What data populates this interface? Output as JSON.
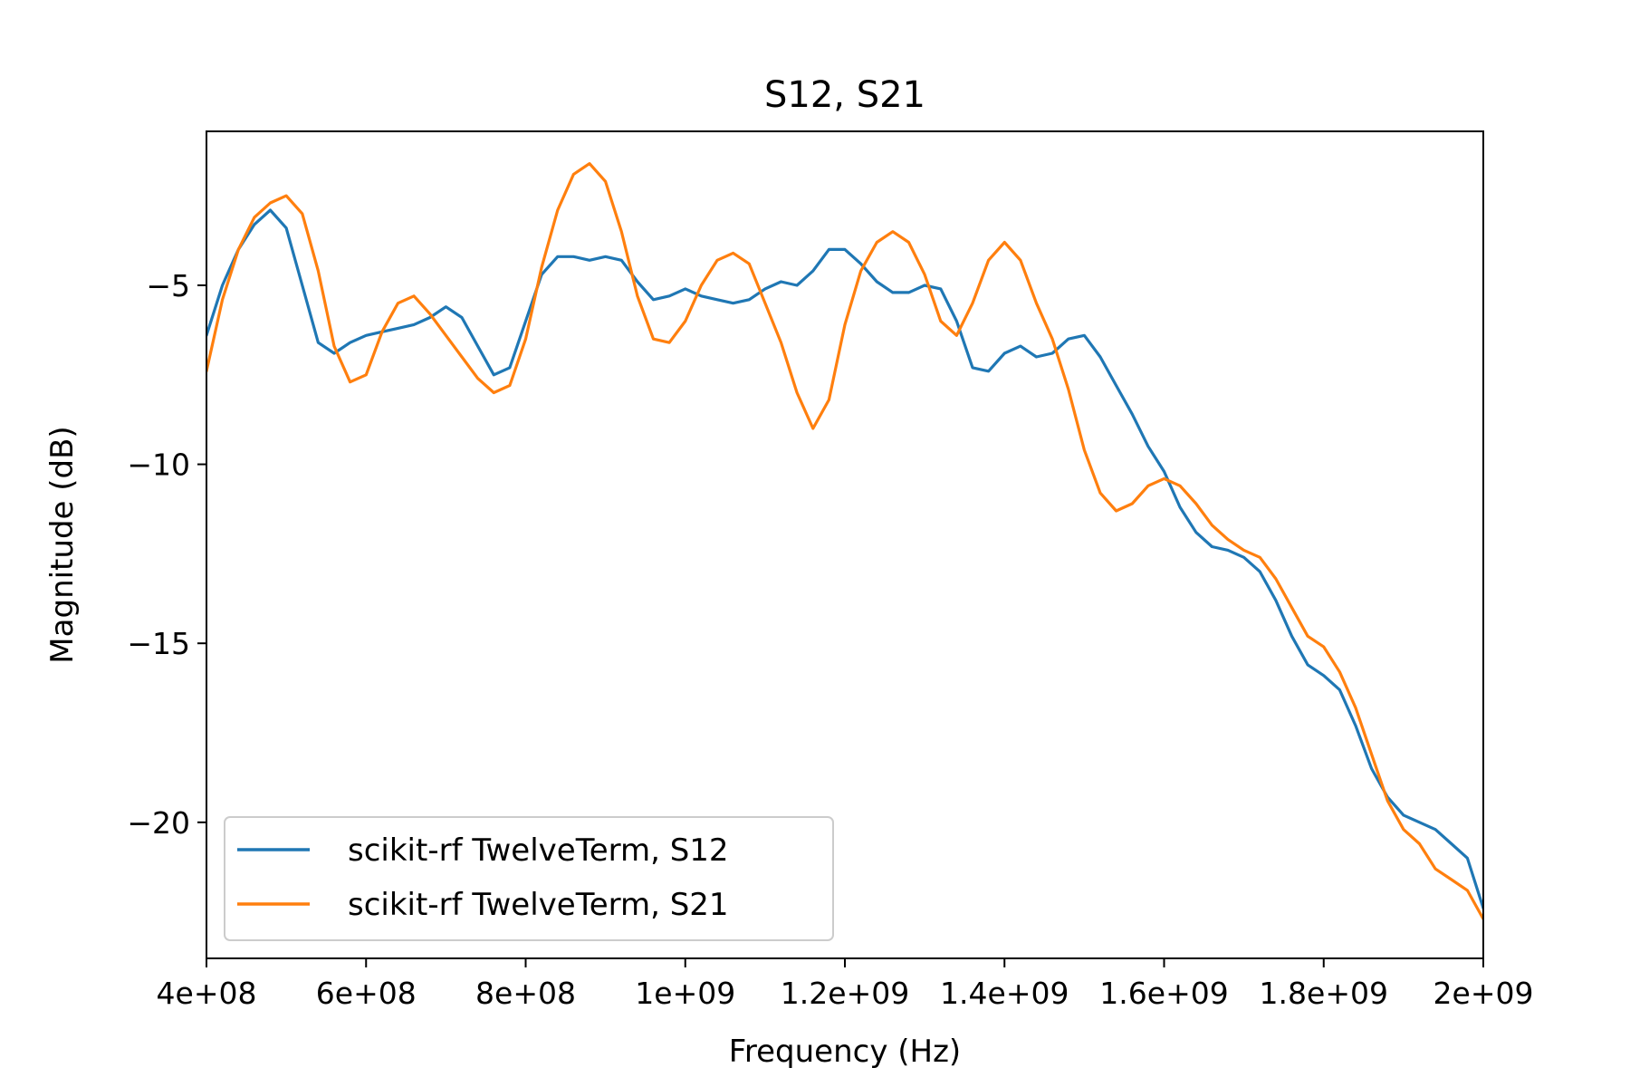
{
  "chart_data": {
    "type": "line",
    "title": "S12, S21",
    "xlabel": "Frequency (Hz)",
    "ylabel": "Magnitude (dB)",
    "xlim": [
      400000000,
      2000000000
    ],
    "ylim": [
      -23.8,
      -0.7
    ],
    "x_ticks": [
      {
        "value": 400000000,
        "label": "4e+08"
      },
      {
        "value": 600000000,
        "label": "6e+08"
      },
      {
        "value": 800000000,
        "label": "8e+08"
      },
      {
        "value": 1000000000,
        "label": "1e+09"
      },
      {
        "value": 1200000000,
        "label": "1.2e+09"
      },
      {
        "value": 1400000000,
        "label": "1.4e+09"
      },
      {
        "value": 1600000000,
        "label": "1.6e+09"
      },
      {
        "value": 1800000000,
        "label": "1.8e+09"
      },
      {
        "value": 2000000000,
        "label": "2e+09"
      }
    ],
    "y_ticks": [
      {
        "value": -5,
        "label": "−5"
      },
      {
        "value": -10,
        "label": "−10"
      },
      {
        "value": -15,
        "label": "−15"
      },
      {
        "value": -20,
        "label": "−20"
      }
    ],
    "grid": false,
    "legend_position": "lower-left",
    "series": [
      {
        "name": "scikit-rf TwelveTerm, S12",
        "color": "#1f77b4",
        "x": [
          400000000,
          420000000,
          440000000,
          460000000,
          480000000,
          500000000,
          520000000,
          540000000,
          560000000,
          580000000,
          600000000,
          620000000,
          640000000,
          660000000,
          680000000,
          700000000,
          720000000,
          740000000,
          760000000,
          780000000,
          800000000,
          820000000,
          840000000,
          860000000,
          880000000,
          900000000,
          920000000,
          940000000,
          960000000,
          980000000,
          1000000000,
          1020000000,
          1040000000,
          1060000000,
          1080000000,
          1100000000,
          1120000000,
          1140000000,
          1160000000,
          1180000000,
          1200000000,
          1220000000,
          1240000000,
          1260000000,
          1280000000,
          1300000000,
          1320000000,
          1340000000,
          1360000000,
          1380000000,
          1400000000,
          1420000000,
          1440000000,
          1460000000,
          1480000000,
          1500000000,
          1520000000,
          1540000000,
          1560000000,
          1580000000,
          1600000000,
          1620000000,
          1640000000,
          1660000000,
          1680000000,
          1700000000,
          1720000000,
          1740000000,
          1760000000,
          1780000000,
          1800000000,
          1820000000,
          1840000000,
          1860000000,
          1880000000,
          1900000000,
          1920000000,
          1940000000,
          1960000000,
          1980000000,
          2000000000
        ],
        "y": [
          -6.4,
          -5.0,
          -4.0,
          -3.3,
          -2.9,
          -3.4,
          -5.0,
          -6.6,
          -6.9,
          -6.6,
          -6.4,
          -6.3,
          -6.2,
          -6.1,
          -5.9,
          -5.6,
          -5.9,
          -6.7,
          -7.5,
          -7.3,
          -6.0,
          -4.7,
          -4.2,
          -4.2,
          -4.3,
          -4.2,
          -4.3,
          -4.9,
          -5.4,
          -5.3,
          -5.1,
          -5.3,
          -5.4,
          -5.5,
          -5.4,
          -5.1,
          -4.9,
          -5.0,
          -4.6,
          -4.0,
          -4.0,
          -4.4,
          -4.9,
          -5.2,
          -5.2,
          -5.0,
          -5.1,
          -6.0,
          -7.3,
          -7.4,
          -6.9,
          -6.7,
          -7.0,
          -6.9,
          -6.5,
          -6.4,
          -7.0,
          -7.8,
          -8.6,
          -9.5,
          -10.2,
          -11.2,
          -11.9,
          -12.3,
          -12.4,
          -12.6,
          -13.0,
          -13.8,
          -14.8,
          -15.6,
          -15.9,
          -16.3,
          -17.3,
          -18.5,
          -19.3,
          -19.8,
          -20.0,
          -20.2,
          -20.6,
          -21.0,
          -22.4
        ]
      },
      {
        "name": "scikit-rf TwelveTerm, S21",
        "color": "#ff7f0e",
        "x": [
          400000000,
          420000000,
          440000000,
          460000000,
          480000000,
          500000000,
          520000000,
          540000000,
          560000000,
          580000000,
          600000000,
          620000000,
          640000000,
          660000000,
          680000000,
          700000000,
          720000000,
          740000000,
          760000000,
          780000000,
          800000000,
          820000000,
          840000000,
          860000000,
          880000000,
          900000000,
          920000000,
          940000000,
          960000000,
          980000000,
          1000000000,
          1020000000,
          1040000000,
          1060000000,
          1080000000,
          1100000000,
          1120000000,
          1140000000,
          1160000000,
          1180000000,
          1200000000,
          1220000000,
          1240000000,
          1260000000,
          1280000000,
          1300000000,
          1320000000,
          1340000000,
          1360000000,
          1380000000,
          1400000000,
          1420000000,
          1440000000,
          1460000000,
          1480000000,
          1500000000,
          1520000000,
          1540000000,
          1560000000,
          1580000000,
          1600000000,
          1620000000,
          1640000000,
          1660000000,
          1680000000,
          1700000000,
          1720000000,
          1740000000,
          1760000000,
          1780000000,
          1800000000,
          1820000000,
          1840000000,
          1860000000,
          1880000000,
          1900000000,
          1920000000,
          1940000000,
          1960000000,
          1980000000,
          2000000000
        ],
        "y": [
          -7.4,
          -5.4,
          -4.0,
          -3.1,
          -2.7,
          -2.5,
          -3.0,
          -4.6,
          -6.7,
          -7.7,
          -7.5,
          -6.3,
          -5.5,
          -5.3,
          -5.8,
          -6.4,
          -7.0,
          -7.6,
          -8.0,
          -7.8,
          -6.5,
          -4.5,
          -2.9,
          -1.9,
          -1.6,
          -2.1,
          -3.5,
          -5.3,
          -6.5,
          -6.6,
          -6.0,
          -5.0,
          -4.3,
          -4.1,
          -4.4,
          -5.5,
          -6.6,
          -8.0,
          -9.0,
          -8.2,
          -6.1,
          -4.6,
          -3.8,
          -3.5,
          -3.8,
          -4.7,
          -6.0,
          -6.4,
          -5.5,
          -4.3,
          -3.8,
          -4.3,
          -5.5,
          -6.5,
          -7.9,
          -9.6,
          -10.8,
          -11.3,
          -11.1,
          -10.6,
          -10.4,
          -10.6,
          -11.1,
          -11.7,
          -12.1,
          -12.4,
          -12.6,
          -13.2,
          -14.0,
          -14.8,
          -15.1,
          -15.8,
          -16.8,
          -18.1,
          -19.4,
          -20.2,
          -20.6,
          -21.3,
          -21.6,
          -21.9,
          -22.7
        ]
      }
    ]
  }
}
